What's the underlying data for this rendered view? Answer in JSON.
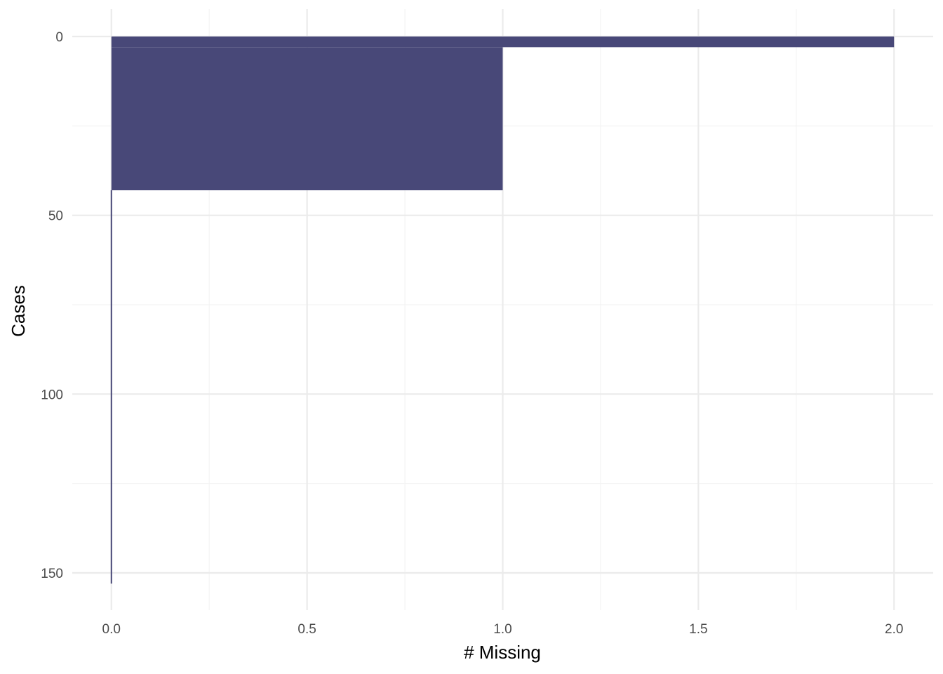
{
  "chart_data": {
    "type": "bar",
    "orientation": "horizontal",
    "xlabel": "# Missing",
    "ylabel": "Cases",
    "xlim": [
      -0.1,
      2.1
    ],
    "ylim": [
      0,
      160
    ],
    "y_reversed": true,
    "x_ticks": [
      0.0,
      0.5,
      1.0,
      1.5,
      2.0
    ],
    "x_tick_labels": [
      "0.0",
      "0.5",
      "1.0",
      "1.5",
      "2.0"
    ],
    "y_ticks": [
      0,
      50,
      100,
      150
    ],
    "y_tick_labels": [
      "0",
      "50",
      "100",
      "150"
    ],
    "grid": true,
    "bar_color": "#484878",
    "bins": [
      {
        "case_from": 0,
        "case_to": 3,
        "missing": 2
      },
      {
        "case_from": 3,
        "case_to": 43,
        "missing": 1
      },
      {
        "case_from": 43,
        "case_to": 153,
        "missing": 0
      }
    ]
  }
}
